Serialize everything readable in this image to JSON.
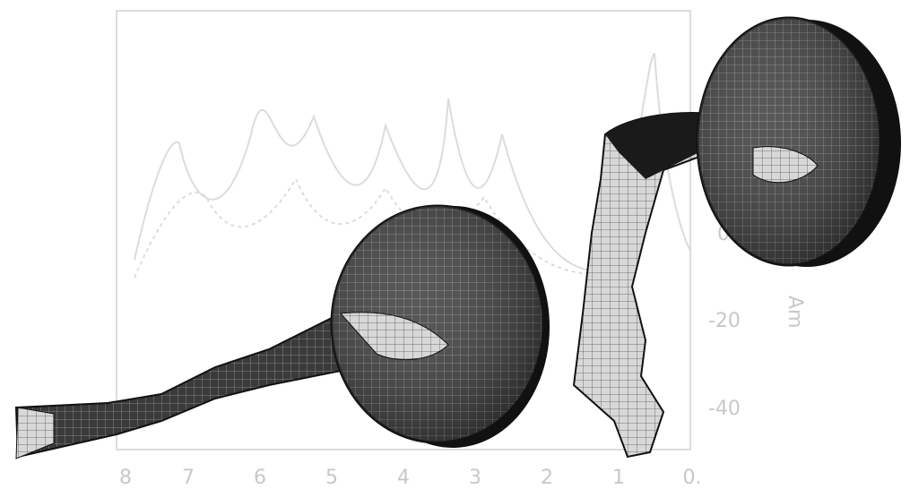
{
  "figure": {
    "x_tick_labels": [
      "8",
      "7",
      "6",
      "5",
      "4",
      "3",
      "2",
      "1",
      "0."
    ],
    "y_tick_labels": [
      "0",
      "-20",
      "-40"
    ],
    "axis_label": "Am"
  }
}
